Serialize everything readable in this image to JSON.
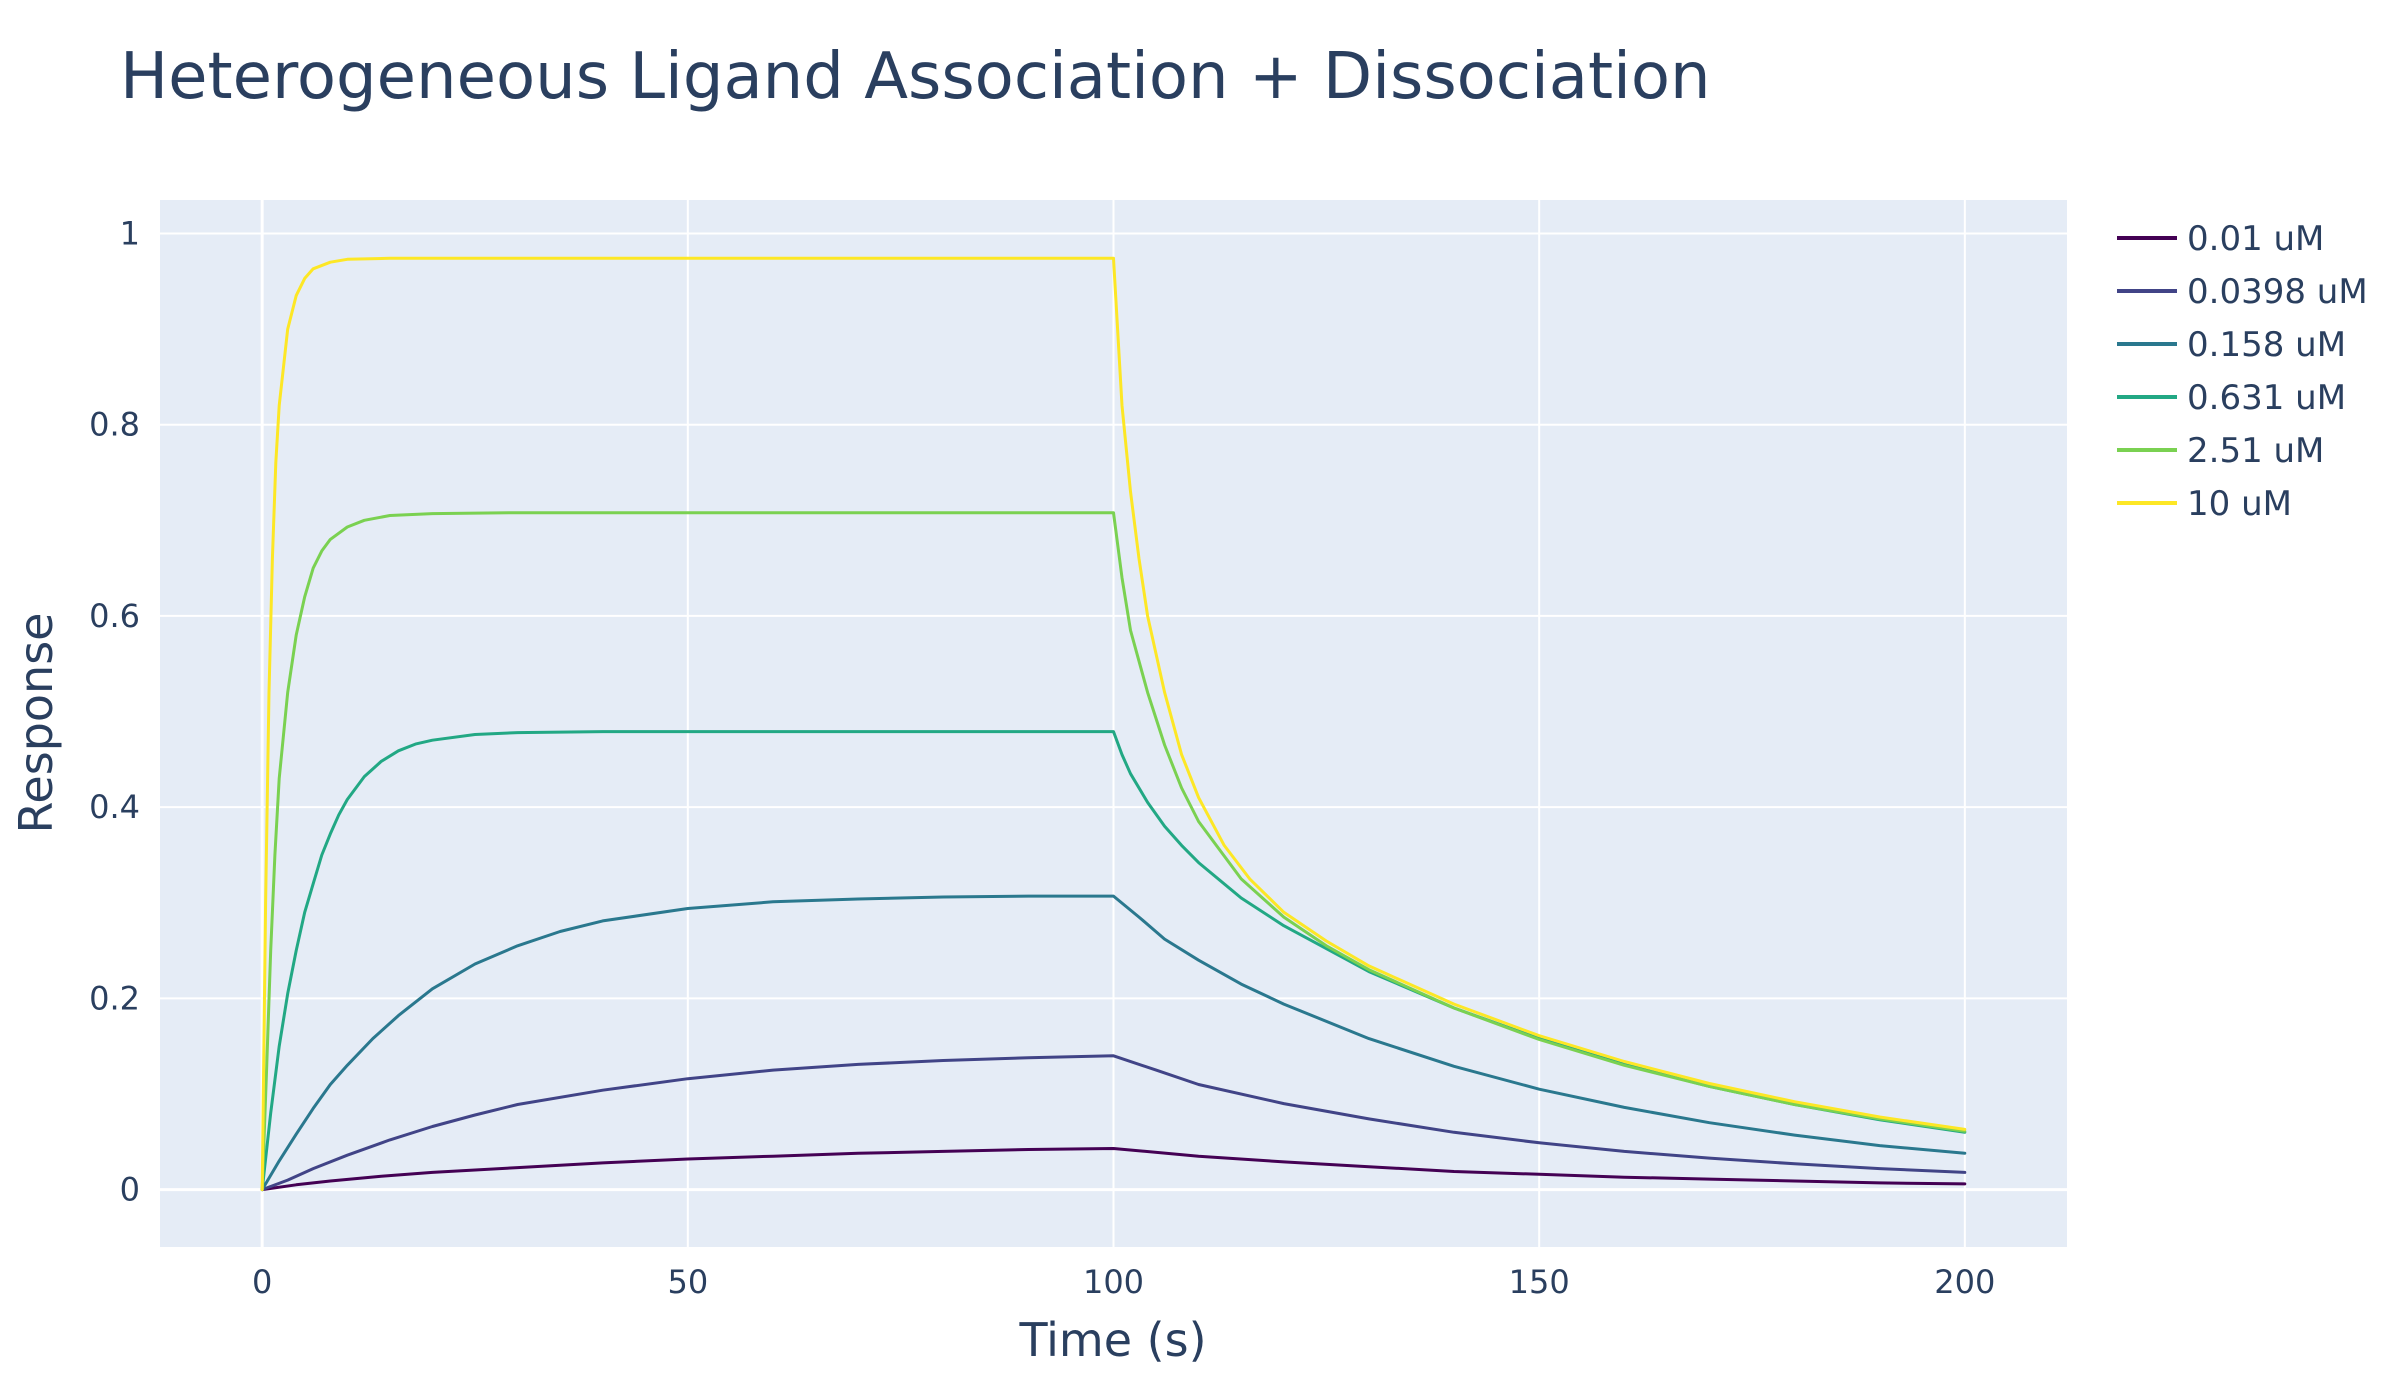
{
  "chart_data": {
    "type": "line",
    "title": "Heterogeneous Ligand Association + Dissociation",
    "xlabel": "Time (s)",
    "ylabel": "Response",
    "xlim": [
      -12,
      212
    ],
    "ylim": [
      -0.06,
      1.035
    ],
    "x_ticks": [
      0,
      50,
      100,
      150,
      200
    ],
    "y_ticks": [
      0,
      0.2,
      0.4,
      0.6,
      0.8,
      1
    ],
    "y_tick_labels": [
      "0",
      "0.2",
      "0.4",
      "0.6",
      "0.8",
      "1"
    ],
    "grid": true,
    "legend_position": "right",
    "plot_background": "#e5ecf6",
    "series": [
      {
        "name": "0.01 uM",
        "color": "#440154",
        "points": [
          [
            0,
            0
          ],
          [
            4,
            0.005
          ],
          [
            8,
            0.009
          ],
          [
            14,
            0.014
          ],
          [
            20,
            0.018
          ],
          [
            30,
            0.023
          ],
          [
            40,
            0.028
          ],
          [
            50,
            0.032
          ],
          [
            60,
            0.035
          ],
          [
            70,
            0.038
          ],
          [
            80,
            0.04
          ],
          [
            90,
            0.042
          ],
          [
            100,
            0.043
          ],
          [
            110,
            0.035
          ],
          [
            120,
            0.029
          ],
          [
            130,
            0.024
          ],
          [
            140,
            0.019
          ],
          [
            150,
            0.016
          ],
          [
            160,
            0.013
          ],
          [
            170,
            0.011
          ],
          [
            180,
            0.009
          ],
          [
            190,
            0.007
          ],
          [
            200,
            0.006
          ]
        ]
      },
      {
        "name": "0.0398 uM",
        "color": "#414487",
        "points": [
          [
            0,
            0
          ],
          [
            3,
            0.01
          ],
          [
            6,
            0.022
          ],
          [
            10,
            0.036
          ],
          [
            15,
            0.052
          ],
          [
            20,
            0.066
          ],
          [
            25,
            0.078
          ],
          [
            30,
            0.089
          ],
          [
            40,
            0.104
          ],
          [
            50,
            0.116
          ],
          [
            60,
            0.125
          ],
          [
            70,
            0.131
          ],
          [
            80,
            0.135
          ],
          [
            90,
            0.138
          ],
          [
            100,
            0.14
          ],
          [
            105,
            0.125
          ],
          [
            110,
            0.11
          ],
          [
            120,
            0.09
          ],
          [
            130,
            0.074
          ],
          [
            140,
            0.06
          ],
          [
            150,
            0.049
          ],
          [
            160,
            0.04
          ],
          [
            170,
            0.033
          ],
          [
            180,
            0.027
          ],
          [
            190,
            0.022
          ],
          [
            200,
            0.018
          ]
        ]
      },
      {
        "name": "0.158 uM",
        "color": "#2a788e",
        "points": [
          [
            0,
            0
          ],
          [
            2,
            0.03
          ],
          [
            4,
            0.058
          ],
          [
            6,
            0.085
          ],
          [
            8,
            0.11
          ],
          [
            10,
            0.13
          ],
          [
            13,
            0.158
          ],
          [
            16,
            0.182
          ],
          [
            20,
            0.21
          ],
          [
            25,
            0.236
          ],
          [
            30,
            0.255
          ],
          [
            35,
            0.27
          ],
          [
            40,
            0.281
          ],
          [
            50,
            0.294
          ],
          [
            60,
            0.301
          ],
          [
            70,
            0.304
          ],
          [
            80,
            0.306
          ],
          [
            90,
            0.307
          ],
          [
            100,
            0.307
          ],
          [
            103,
            0.285
          ],
          [
            106,
            0.262
          ],
          [
            110,
            0.24
          ],
          [
            115,
            0.215
          ],
          [
            120,
            0.194
          ],
          [
            130,
            0.158
          ],
          [
            140,
            0.129
          ],
          [
            150,
            0.105
          ],
          [
            160,
            0.086
          ],
          [
            170,
            0.07
          ],
          [
            180,
            0.057
          ],
          [
            190,
            0.046
          ],
          [
            200,
            0.038
          ]
        ]
      },
      {
        "name": "0.631 uM",
        "color": "#22a884",
        "points": [
          [
            0,
            0
          ],
          [
            1,
            0.08
          ],
          [
            2,
            0.15
          ],
          [
            3,
            0.205
          ],
          [
            4,
            0.25
          ],
          [
            5,
            0.29
          ],
          [
            6,
            0.32
          ],
          [
            7,
            0.35
          ],
          [
            8,
            0.372
          ],
          [
            9,
            0.392
          ],
          [
            10,
            0.408
          ],
          [
            12,
            0.432
          ],
          [
            14,
            0.448
          ],
          [
            16,
            0.459
          ],
          [
            18,
            0.466
          ],
          [
            20,
            0.47
          ],
          [
            25,
            0.476
          ],
          [
            30,
            0.478
          ],
          [
            40,
            0.479
          ],
          [
            60,
            0.479
          ],
          [
            100,
            0.479
          ],
          [
            101,
            0.455
          ],
          [
            102,
            0.435
          ],
          [
            104,
            0.405
          ],
          [
            106,
            0.38
          ],
          [
            108,
            0.36
          ],
          [
            110,
            0.342
          ],
          [
            115,
            0.305
          ],
          [
            120,
            0.276
          ],
          [
            130,
            0.228
          ],
          [
            140,
            0.19
          ],
          [
            150,
            0.158
          ],
          [
            160,
            0.131
          ],
          [
            170,
            0.108
          ],
          [
            180,
            0.089
          ],
          [
            190,
            0.073
          ],
          [
            200,
            0.06
          ]
        ]
      },
      {
        "name": "2.51 uM",
        "color": "#7ad151",
        "points": [
          [
            0,
            0
          ],
          [
            0.5,
            0.12
          ],
          [
            1,
            0.25
          ],
          [
            1.5,
            0.35
          ],
          [
            2,
            0.43
          ],
          [
            3,
            0.52
          ],
          [
            4,
            0.58
          ],
          [
            5,
            0.62
          ],
          [
            6,
            0.65
          ],
          [
            7,
            0.668
          ],
          [
            8,
            0.68
          ],
          [
            10,
            0.693
          ],
          [
            12,
            0.7
          ],
          [
            15,
            0.705
          ],
          [
            20,
            0.707
          ],
          [
            30,
            0.708
          ],
          [
            60,
            0.708
          ],
          [
            100,
            0.708
          ],
          [
            101,
            0.64
          ],
          [
            102,
            0.585
          ],
          [
            104,
            0.52
          ],
          [
            106,
            0.465
          ],
          [
            108,
            0.42
          ],
          [
            110,
            0.385
          ],
          [
            115,
            0.325
          ],
          [
            120,
            0.285
          ],
          [
            125,
            0.255
          ],
          [
            130,
            0.23
          ],
          [
            140,
            0.19
          ],
          [
            150,
            0.157
          ],
          [
            160,
            0.13
          ],
          [
            170,
            0.108
          ],
          [
            180,
            0.089
          ],
          [
            190,
            0.074
          ],
          [
            200,
            0.061
          ]
        ]
      },
      {
        "name": "10 uM",
        "color": "#fde725",
        "points": [
          [
            0,
            0
          ],
          [
            0.4,
            0.3
          ],
          [
            0.8,
            0.52
          ],
          [
            1.2,
            0.66
          ],
          [
            1.6,
            0.76
          ],
          [
            2,
            0.82
          ],
          [
            3,
            0.9
          ],
          [
            4,
            0.935
          ],
          [
            5,
            0.953
          ],
          [
            6,
            0.963
          ],
          [
            8,
            0.97
          ],
          [
            10,
            0.973
          ],
          [
            15,
            0.974
          ],
          [
            100,
            0.974
          ],
          [
            101,
            0.82
          ],
          [
            102,
            0.73
          ],
          [
            103,
            0.66
          ],
          [
            104,
            0.6
          ],
          [
            106,
            0.52
          ],
          [
            108,
            0.455
          ],
          [
            110,
            0.41
          ],
          [
            113,
            0.36
          ],
          [
            116,
            0.325
          ],
          [
            120,
            0.29
          ],
          [
            125,
            0.26
          ],
          [
            130,
            0.234
          ],
          [
            140,
            0.194
          ],
          [
            150,
            0.161
          ],
          [
            160,
            0.134
          ],
          [
            170,
            0.111
          ],
          [
            180,
            0.092
          ],
          [
            190,
            0.076
          ],
          [
            200,
            0.063
          ]
        ]
      }
    ]
  }
}
